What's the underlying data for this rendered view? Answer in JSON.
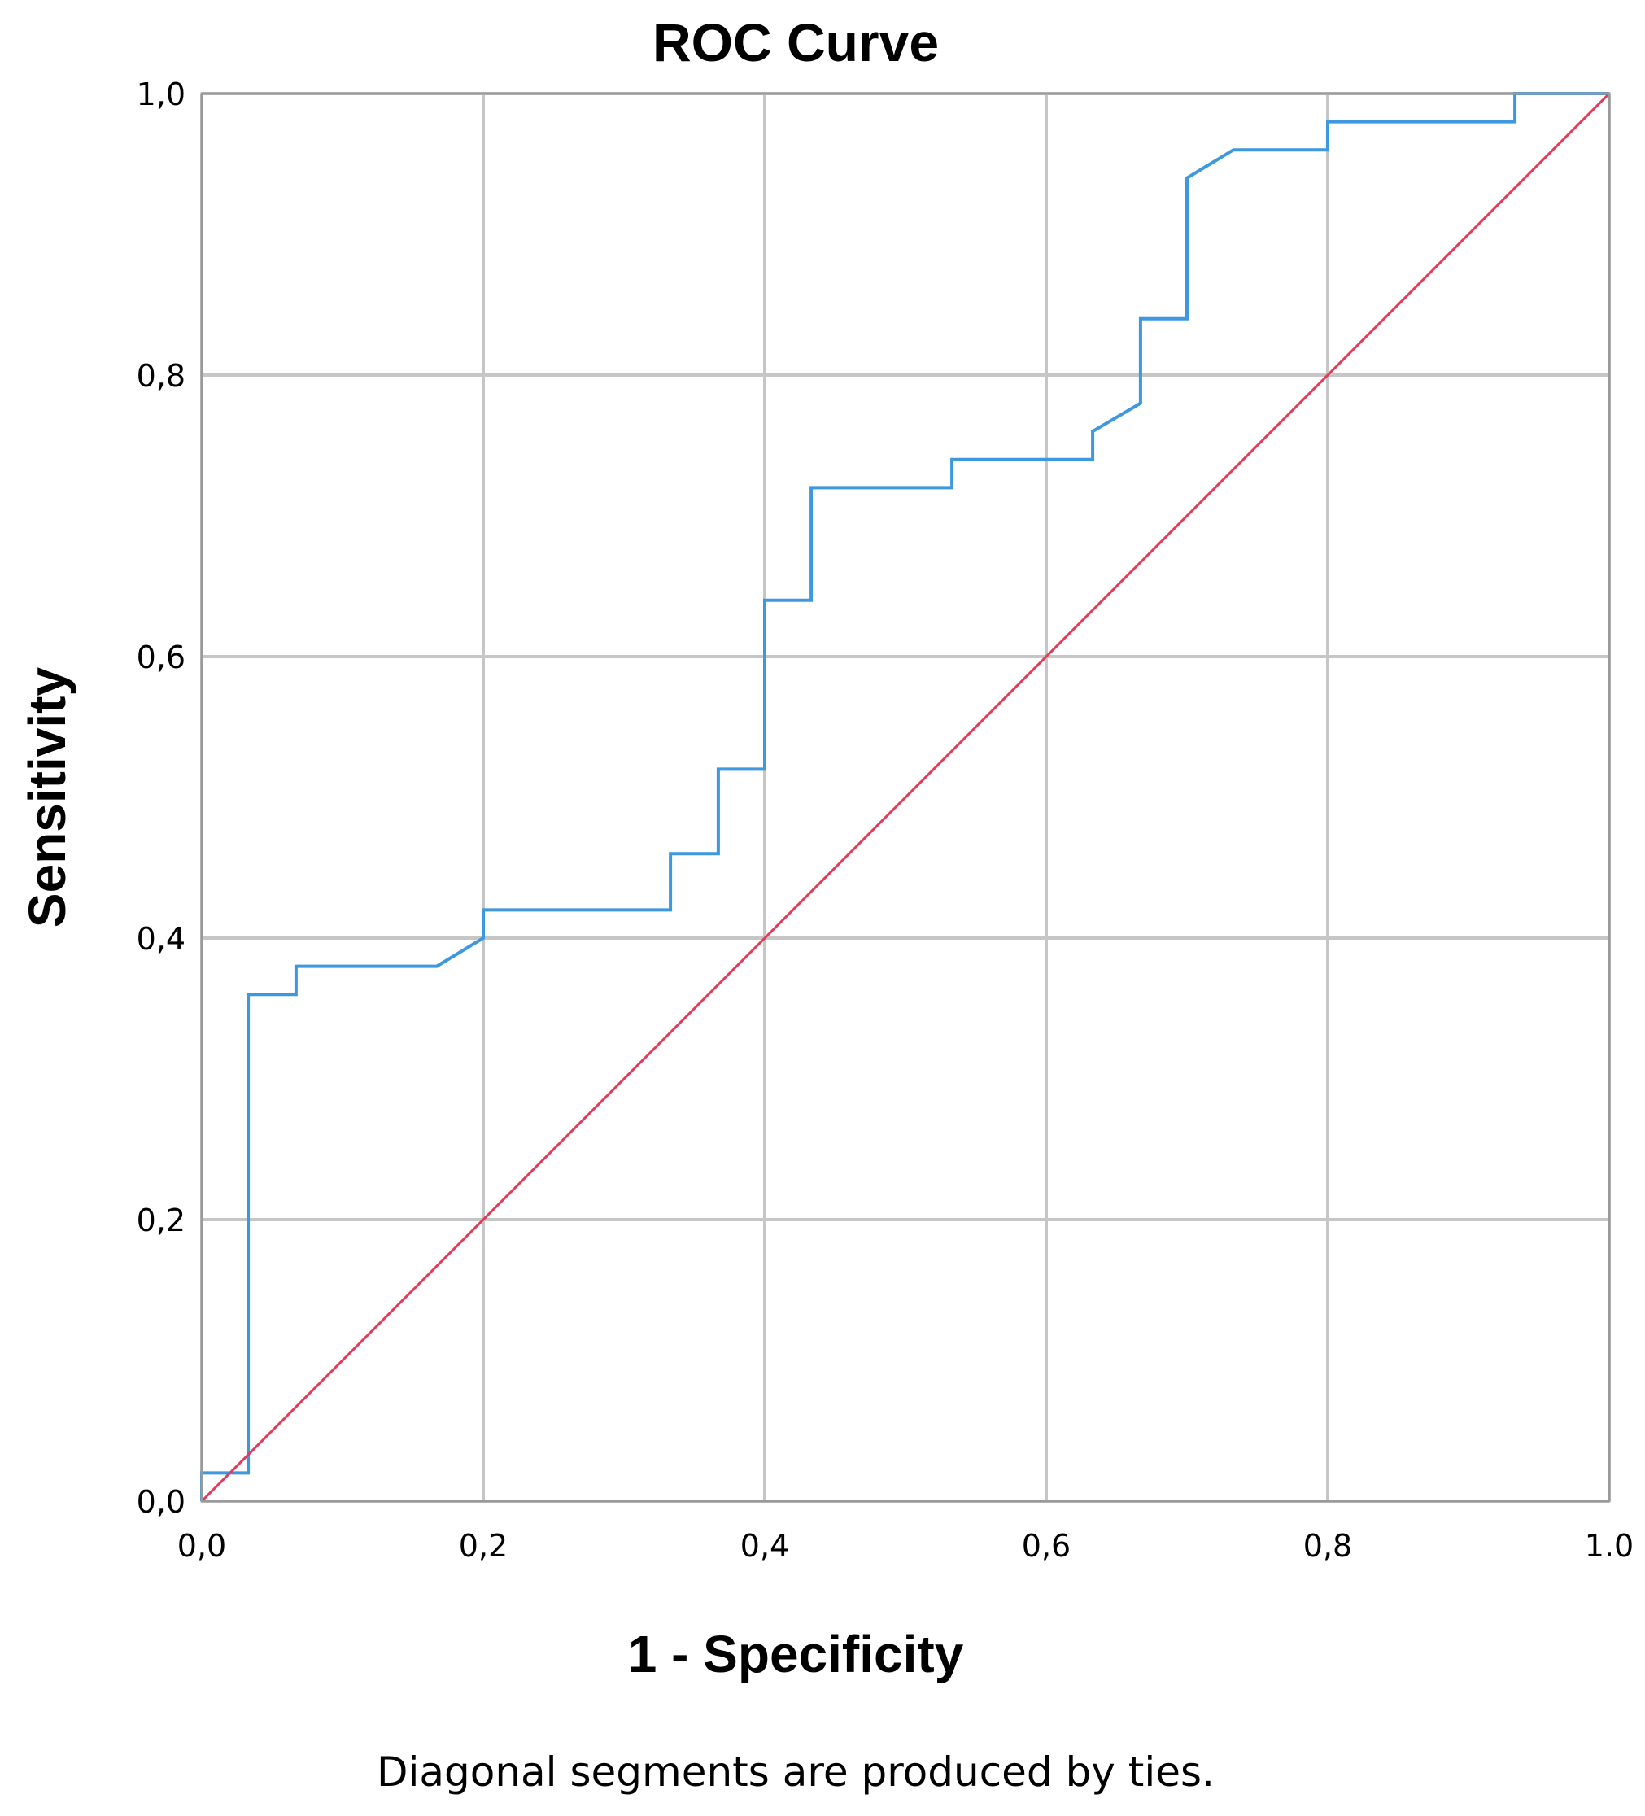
{
  "chart_data": {
    "type": "line",
    "title": "ROC Curve",
    "xlabel": "1 - Specificity",
    "ylabel": "Sensitivity",
    "footnote": "Diagonal segments are produced by ties.",
    "xlim": [
      0,
      1
    ],
    "ylim": [
      0,
      1
    ],
    "grid": true,
    "x_ticks": [
      0,
      0.2,
      0.4,
      0.6,
      0.8,
      1.0
    ],
    "x_tick_labels": [
      "0,0",
      "0,2",
      "0,4",
      "0,6",
      "0,8",
      "1.0"
    ],
    "y_ticks": [
      0,
      0.2,
      0.4,
      0.6,
      0.8,
      1.0
    ],
    "y_tick_labels": [
      "0,0",
      "0,2",
      "0,4",
      "0,6",
      "0,8",
      "1,0"
    ],
    "series": [
      {
        "color": "#3d98e0",
        "x": [
          0,
          0,
          0.033,
          0.033,
          0.067,
          0.067,
          0.167,
          0.2,
          0.2,
          0.333,
          0.333,
          0.367,
          0.367,
          0.4,
          0.4,
          0.433,
          0.433,
          0.533,
          0.533,
          0.633,
          0.633,
          0.667,
          0.667,
          0.7,
          0.7,
          0.733,
          0.8,
          0.8,
          0.933,
          0.933,
          1.0
        ],
        "y": [
          0,
          0.02,
          0.02,
          0.36,
          0.36,
          0.38,
          0.38,
          0.4,
          0.42,
          0.42,
          0.46,
          0.46,
          0.52,
          0.52,
          0.64,
          0.64,
          0.72,
          0.72,
          0.74,
          0.74,
          0.76,
          0.78,
          0.84,
          0.84,
          0.94,
          0.96,
          0.96,
          0.98,
          0.98,
          1.0,
          1.0
        ]
      },
      {
        "color": "#e8385a",
        "x": [
          0,
          1
        ],
        "y": [
          0,
          1
        ]
      }
    ]
  }
}
